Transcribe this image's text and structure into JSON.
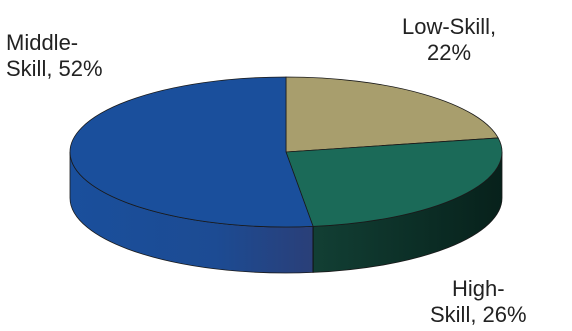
{
  "chart_data": {
    "type": "pie",
    "slices": [
      {
        "label_line1": "Middle-",
        "label_line2": "Skill, 52%",
        "category": "Middle-Skill",
        "value": 52,
        "color": "#1a4f9c",
        "side_color": "#16357a"
      },
      {
        "label_line1": "Low-Skill,",
        "label_line2": "22%",
        "category": "Low-Skill",
        "value": 22,
        "color": "#a89e6d",
        "side_color": "#5f5a3c"
      },
      {
        "label_line1": "High-",
        "label_line2": "Skill, 26%",
        "category": "High-Skill",
        "value": 26,
        "color": "#1b6a58",
        "side_color": "#0b2e26"
      }
    ],
    "unit": "%",
    "style": "3d-pie"
  }
}
